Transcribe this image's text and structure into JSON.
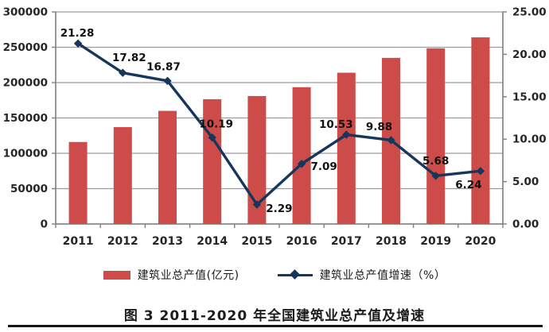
{
  "caption": "图 3  2011-2020 年全国建筑业总产值及增速",
  "colors": {
    "bar": "#cd4b48",
    "line": "#16365c",
    "grid": "#9c9c9c",
    "axis_line": "#7f7f7f",
    "axis_text": "#262626",
    "point_label_text": "#111111",
    "background": "#ffffff",
    "bottom_rule": "#161616"
  },
  "chart_data": {
    "type": "bar+line combo",
    "title": "",
    "categories": [
      "2011",
      "2012",
      "2013",
      "2014",
      "2015",
      "2016",
      "2017",
      "2018",
      "2019",
      "2020"
    ],
    "series": [
      {
        "name": "建筑业总产值(亿元)",
        "type": "bar",
        "axis": "left",
        "color": "#cd4b48",
        "values": [
          116000,
          137000,
          160000,
          176500,
          181000,
          193500,
          214000,
          235000,
          248500,
          264000
        ]
      },
      {
        "name": "建筑业总产值增速（%）",
        "type": "line",
        "axis": "right",
        "color": "#16365c",
        "marker": "diamond",
        "values": [
          21.28,
          17.82,
          16.87,
          10.19,
          2.29,
          7.09,
          10.53,
          9.88,
          5.68,
          6.24
        ],
        "point_labels": [
          "21.28",
          "17.82",
          "16.87",
          "10.19",
          "2.29",
          "7.09",
          "10.53",
          "9.88",
          "5.68",
          "6.24"
        ],
        "label_offsets": [
          [
            -1,
            -13
          ],
          [
            8,
            -19
          ],
          [
            -5,
            -18
          ],
          [
            5,
            -17
          ],
          [
            28,
            5
          ],
          [
            28,
            3
          ],
          [
            -13,
            -13
          ],
          [
            -15,
            -17
          ],
          [
            0,
            -19
          ],
          [
            -15,
            17
          ]
        ]
      }
    ],
    "left_axis": {
      "min": 0,
      "max": 300000,
      "step": 50000,
      "ticks": [
        "0",
        "50000",
        "100000",
        "150000",
        "200000",
        "250000",
        "300000"
      ]
    },
    "right_axis": {
      "min": 0,
      "max": 25,
      "step": 5,
      "ticks": [
        "0.00",
        "5.00",
        "10.00",
        "15.00",
        "20.00",
        "25.00"
      ]
    },
    "grid": true,
    "legend_position": "bottom"
  }
}
